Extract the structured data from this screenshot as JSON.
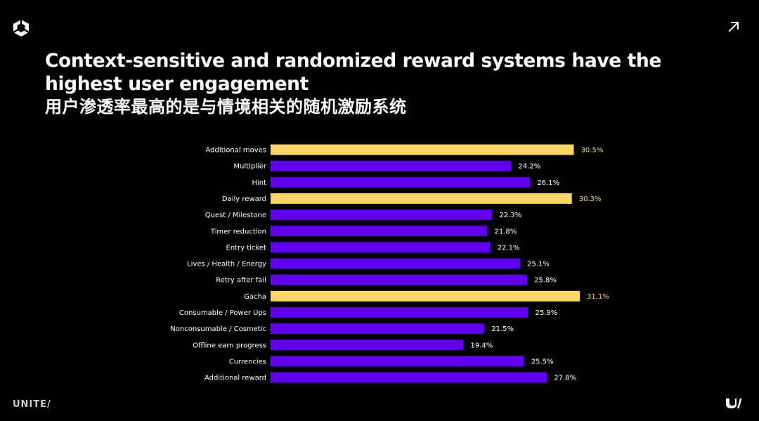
{
  "slide": {
    "title_line1": "Context-sensitive and randomized reward systems have the",
    "title_line2": "highest user engagement",
    "title_line3": "用户渗透率最高的是与情境相关的随机激励系统",
    "footer_logo": "UNITE/",
    "icons": {
      "top_left": "unity-logo-icon",
      "top_right": "arrow-up-right-icon",
      "bottom_right": "u-slash-logo-icon"
    }
  },
  "colors": {
    "background": "#000000",
    "highlight": "#FFD466",
    "default": "#6200EE",
    "text": "#FFFFFF"
  },
  "chart_data": {
    "type": "bar",
    "orientation": "horizontal",
    "categories": [
      "Additional moves",
      "Multiplier",
      "Hint",
      "Daily reward",
      "Quest / Milestone",
      "Timer reduction",
      "Entry ticket",
      "Lives / Health / Energy",
      "Retry after fail",
      "Gacha",
      "Consumable / Power Ups",
      "Nonconsumable / Cosmetic",
      "Offline earn progress",
      "Currencies",
      "Additional reward"
    ],
    "values": [
      30.5,
      24.2,
      26.1,
      30.3,
      22.3,
      21.8,
      22.1,
      25.1,
      25.8,
      31.1,
      25.9,
      21.5,
      19.4,
      25.5,
      27.8
    ],
    "value_labels": [
      "30.5%",
      "24.2%",
      "26.1%",
      "30.3%",
      "22.3%",
      "21.8%",
      "22.1%",
      "25.1%",
      "25.8%",
      "31.1%",
      "25.9%",
      "21.5%",
      "19.4%",
      "25.5%",
      "27.8%"
    ],
    "highlighted": [
      true,
      false,
      false,
      true,
      false,
      false,
      false,
      false,
      false,
      true,
      false,
      false,
      false,
      false,
      false
    ],
    "unit": "%",
    "xlim": [
      0,
      31.1
    ],
    "grid": false,
    "legend": "none"
  }
}
